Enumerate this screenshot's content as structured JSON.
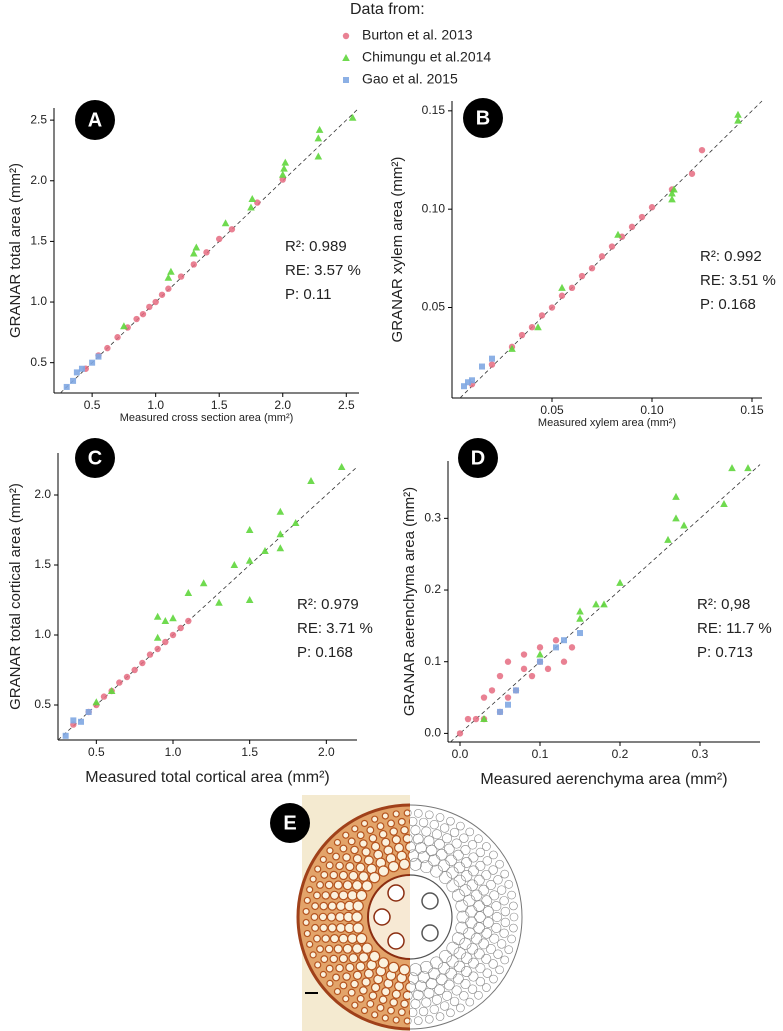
{
  "chart_data": [
    {
      "type": "scatter",
      "label": "A",
      "legend_title": "Data from:",
      "xlabel": "Measured cross section area (mm²)",
      "ylabel": "GRANAR total area (mm²)",
      "xlim": [
        0.2,
        2.6
      ],
      "ylim": [
        0.25,
        2.6
      ],
      "xticks": [
        0.5,
        {
          "value": 1,
          "label": "1.0"
        },
        1.5,
        {
          "value": 2,
          "label": "2.0"
        },
        2.5
      ],
      "yticks": [
        0.5,
        {
          "value": 1,
          "label": "1.0"
        },
        1.5,
        {
          "value": 2,
          "label": "2.0"
        },
        2.5
      ],
      "annotations": [
        "R²: 0.989",
        "RE: 3.57 %",
        "P: 0.11"
      ],
      "series": [
        {
          "name": "Burton et al. 2013",
          "color": "#e56b80",
          "marker": "circle",
          "x": [
            0.45,
            0.55,
            0.62,
            0.7,
            0.78,
            0.85,
            0.9,
            0.95,
            1.0,
            1.05,
            1.1,
            1.2,
            1.3,
            1.4,
            1.5,
            1.6,
            1.8,
            2.0
          ],
          "values": [
            0.45,
            0.56,
            0.62,
            0.71,
            0.79,
            0.86,
            0.9,
            0.96,
            1.0,
            1.06,
            1.11,
            1.21,
            1.31,
            1.41,
            1.52,
            1.6,
            1.82,
            2.01
          ]
        },
        {
          "name": "Chimungu et al.2014",
          "color": "#5fd63c",
          "marker": "triangle",
          "x": [
            0.75,
            1.1,
            1.12,
            1.3,
            1.32,
            1.55,
            1.75,
            1.76,
            2.0,
            2.01,
            2.02,
            2.28,
            2.28,
            2.29,
            2.55
          ],
          "values": [
            0.8,
            1.2,
            1.25,
            1.4,
            1.45,
            1.65,
            1.78,
            1.85,
            2.05,
            2.1,
            2.15,
            2.2,
            2.35,
            2.42,
            2.52
          ]
        },
        {
          "name": "Gao et al. 2015",
          "color": "#7fa7e2",
          "marker": "square",
          "x": [
            0.3,
            0.35,
            0.38,
            0.42,
            0.5,
            0.55
          ],
          "values": [
            0.3,
            0.35,
            0.42,
            0.45,
            0.5,
            0.55
          ]
        }
      ]
    },
    {
      "type": "scatter",
      "label": "B",
      "xlabel": "Measured xylem area (mm²)",
      "ylabel": "GRANAR xylem area (mm²)",
      "xlim": [
        0.0,
        0.155
      ],
      "ylim": [
        0.004,
        0.155
      ],
      "xticks": [
        0.05,
        {
          "value": 0.1,
          "label": "0.10"
        },
        0.15
      ],
      "yticks": [
        0.05,
        {
          "value": 0.1,
          "label": "0.10"
        },
        0.15
      ],
      "annotations": [
        "R²: 0.992",
        "RE: 3.51 %",
        "P: 0.168"
      ],
      "series": [
        {
          "color": "#e56b80",
          "marker": "circle",
          "x": [
            0.01,
            0.02,
            0.03,
            0.035,
            0.04,
            0.045,
            0.05,
            0.055,
            0.06,
            0.065,
            0.07,
            0.075,
            0.08,
            0.085,
            0.09,
            0.095,
            0.1,
            0.11,
            0.12,
            0.125
          ],
          "values": [
            0.011,
            0.021,
            0.03,
            0.036,
            0.04,
            0.046,
            0.05,
            0.056,
            0.06,
            0.066,
            0.07,
            0.076,
            0.081,
            0.086,
            0.091,
            0.096,
            0.101,
            0.11,
            0.118,
            0.13
          ]
        },
        {
          "color": "#5fd63c",
          "marker": "triangle",
          "x": [
            0.03,
            0.043,
            0.055,
            0.083,
            0.11,
            0.11,
            0.111,
            0.143,
            0.143
          ],
          "values": [
            0.029,
            0.04,
            0.06,
            0.087,
            0.105,
            0.108,
            0.11,
            0.145,
            0.148
          ]
        },
        {
          "color": "#7fa7e2",
          "marker": "square",
          "x": [
            0.006,
            0.008,
            0.01,
            0.015,
            0.02
          ],
          "values": [
            0.01,
            0.012,
            0.013,
            0.02,
            0.024
          ]
        }
      ]
    },
    {
      "type": "scatter",
      "label": "C",
      "xlabel": "Measured total cortical area (mm²)",
      "ylabel": "GRANAR total cortical area (mm²)",
      "xlim": [
        0.25,
        2.2
      ],
      "ylim": [
        0.25,
        2.3
      ],
      "xticks": [
        0.5,
        {
          "value": 1,
          "label": "1.0"
        },
        1.5,
        {
          "value": 2,
          "label": "2.0"
        }
      ],
      "yticks": [
        0.5,
        {
          "value": 1,
          "label": "1.0"
        },
        1.5,
        {
          "value": 2,
          "label": "2.0"
        }
      ],
      "annotations": [
        "R²: 0.979",
        "RE: 3.71 %",
        "P: 0.168"
      ],
      "series": [
        {
          "color": "#e56b80",
          "marker": "circle",
          "x": [
            0.35,
            0.45,
            0.5,
            0.55,
            0.6,
            0.65,
            0.7,
            0.75,
            0.8,
            0.85,
            0.9,
            0.95,
            1.0,
            1.05,
            1.1
          ],
          "values": [
            0.36,
            0.45,
            0.5,
            0.56,
            0.6,
            0.66,
            0.7,
            0.75,
            0.8,
            0.86,
            0.9,
            0.95,
            1.0,
            1.05,
            1.1
          ]
        },
        {
          "color": "#5fd63c",
          "marker": "triangle",
          "x": [
            0.5,
            0.6,
            0.9,
            0.9,
            0.95,
            1.0,
            1.1,
            1.2,
            1.3,
            1.4,
            1.5,
            1.5,
            1.5,
            1.6,
            1.7,
            1.7,
            1.7,
            1.8,
            1.9,
            2.1
          ],
          "values": [
            0.52,
            0.6,
            1.13,
            0.98,
            1.1,
            1.12,
            1.3,
            1.37,
            1.23,
            1.5,
            1.25,
            1.53,
            1.75,
            1.6,
            1.62,
            1.88,
            1.72,
            1.8,
            2.1,
            2.2
          ]
        },
        {
          "color": "#7fa7e2",
          "marker": "square",
          "x": [
            0.3,
            0.35,
            0.4,
            0.45
          ],
          "values": [
            0.28,
            0.39,
            0.38,
            0.45
          ]
        }
      ]
    },
    {
      "type": "scatter",
      "label": "D",
      "xlabel": "Measured aerenchyma area (mm²)",
      "ylabel": "GRANAR aerenchyma area (mm²)",
      "xlim": [
        -0.015,
        0.375
      ],
      "ylim": [
        -0.012,
        0.38
      ],
      "xticks": [
        {
          "value": 0,
          "label": "0.0"
        },
        0.1,
        0.2,
        0.3
      ],
      "yticks": [
        {
          "value": 0,
          "label": "0.0"
        },
        0.1,
        0.2,
        0.3
      ],
      "annotations": [
        "R²: 0,98",
        "RE: 11.7  %",
        "P: 0.713"
      ],
      "series": [
        {
          "color": "#e56b80",
          "marker": "circle",
          "x": [
            0.0,
            0.01,
            0.02,
            0.03,
            0.03,
            0.04,
            0.05,
            0.05,
            0.06,
            0.06,
            0.07,
            0.08,
            0.08,
            0.09,
            0.1,
            0.1,
            0.11,
            0.12,
            0.13,
            0.14
          ],
          "values": [
            0.0,
            0.02,
            0.02,
            0.05,
            0.02,
            0.06,
            0.03,
            0.08,
            0.05,
            0.1,
            0.06,
            0.09,
            0.11,
            0.08,
            0.1,
            0.12,
            0.09,
            0.13,
            0.1,
            0.12
          ]
        },
        {
          "color": "#5fd63c",
          "marker": "triangle",
          "x": [
            0.03,
            0.1,
            0.15,
            0.15,
            0.17,
            0.18,
            0.2,
            0.26,
            0.27,
            0.27,
            0.28,
            0.33,
            0.34,
            0.36
          ],
          "values": [
            0.02,
            0.11,
            0.16,
            0.17,
            0.18,
            0.18,
            0.21,
            0.27,
            0.33,
            0.3,
            0.29,
            0.32,
            0.37,
            0.37
          ]
        },
        {
          "color": "#7fa7e2",
          "marker": "square",
          "x": [
            0.05,
            0.06,
            0.07,
            0.1,
            0.12,
            0.13,
            0.15
          ],
          "values": [
            0.03,
            0.04,
            0.06,
            0.1,
            0.12,
            0.13,
            0.14
          ]
        }
      ]
    }
  ],
  "panel_e": {
    "label": "E"
  }
}
